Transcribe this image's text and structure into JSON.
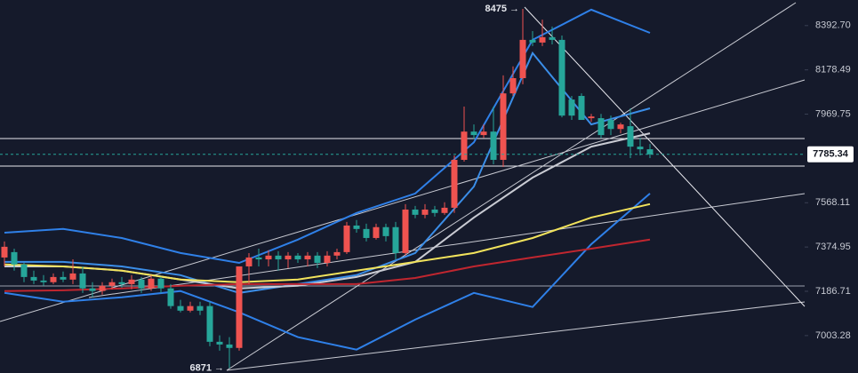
{
  "chart_data": {
    "type": "candlestick",
    "log_scale": true,
    "ylim": [
      6852,
      8519
    ],
    "yticks": [
      {
        "value": 8392.7,
        "label": "8392.70"
      },
      8178.49,
      7969.75,
      7568.11,
      7374.95,
      7186.71,
      7003.28
    ],
    "up_color": "#ef5350",
    "down_color": "#26a69a",
    "candles": {
      "open": [
        7330,
        7353,
        7300,
        7247,
        7232,
        7225,
        7247,
        7236,
        7262,
        7199,
        7188,
        7210,
        7225,
        7217,
        7236,
        7199,
        7240,
        7199,
        7125,
        7106,
        7125,
        7125,
        6978,
        6967,
        6953,
        7292,
        7330,
        7322,
        7338,
        7322,
        7338,
        7322,
        7338,
        7307,
        7338,
        7353,
        7468,
        7453,
        7414,
        7461,
        7461,
        7349,
        7538,
        7515,
        7538,
        7523,
        7546,
        7760,
        7889,
        7873,
        7889,
        7760,
        8067,
        8139,
        8323,
        8310,
        8336,
        8323,
        8038,
        8055,
        7951,
        7951,
        7943,
        7901,
        7914,
        7820,
        7808
      ],
      "high": [
        7399,
        7368,
        7307,
        7274,
        7255,
        7262,
        7270,
        7322,
        7292,
        7225,
        7225,
        7240,
        7247,
        7255,
        7247,
        7255,
        7247,
        7217,
        7151,
        7143,
        7143,
        7143,
        7004,
        6997,
        7217,
        7349,
        7368,
        7361,
        7357,
        7353,
        7349,
        7353,
        7353,
        7357,
        7368,
        7484,
        7492,
        7476,
        7476,
        7476,
        7484,
        7562,
        7554,
        7562,
        7554,
        7570,
        7780,
        8005,
        7922,
        7922,
        8005,
        8152,
        8195,
        8475,
        8366,
        8422,
        8388,
        8344,
        8055,
        8067,
        7971,
        7971,
        7963,
        7930,
        7997,
        7860,
        7832
      ],
      "low": [
        7292,
        7274,
        7225,
        7217,
        7210,
        7217,
        7225,
        7217,
        7180,
        7162,
        7173,
        7195,
        7202,
        7195,
        7180,
        7188,
        7180,
        7114,
        7099,
        7099,
        7088,
        6960,
        6942,
        6871,
        6942,
        7217,
        7292,
        7292,
        7274,
        7285,
        7307,
        7292,
        7285,
        7292,
        7322,
        7345,
        7437,
        7399,
        7407,
        7399,
        7322,
        7338,
        7500,
        7500,
        7507,
        7515,
        7523,
        7752,
        7856,
        7860,
        7740,
        7728,
        8055,
        8110,
        8293,
        8293,
        8301,
        7955,
        7943,
        7943,
        7934,
        7860,
        7873,
        7881,
        7768,
        7780,
        7768
      ],
      "close": [
        7376,
        7300,
        7247,
        7232,
        7225,
        7247,
        7236,
        7262,
        7199,
        7188,
        7210,
        7225,
        7217,
        7236,
        7199,
        7240,
        7199,
        7125,
        7106,
        7125,
        7106,
        6978,
        6967,
        6953,
        7292,
        7330,
        7322,
        7338,
        7322,
        7338,
        7322,
        7338,
        7307,
        7338,
        7353,
        7468,
        7453,
        7414,
        7461,
        7422,
        7349,
        7538,
        7515,
        7538,
        7523,
        7546,
        7760,
        7889,
        7873,
        7889,
        7760,
        8067,
        8139,
        8323,
        8310,
        8336,
        8323,
        7963,
        7963,
        7943,
        7959,
        7873,
        7901,
        7922,
        7820,
        7808,
        7785
      ]
    },
    "series": [
      {
        "color": "#2f80e8",
        "x": [
          0,
          6,
          12,
          18,
          24,
          30,
          36,
          42,
          48,
          54,
          60,
          66
        ],
        "values": [
          7437,
          7453,
          7414,
          7349,
          7307,
          7407,
          7523,
          7609,
          7840,
          8323,
          8471,
          8357
        ]
      },
      {
        "color": "#2f80e8",
        "x": [
          0,
          6,
          12,
          18,
          24,
          30,
          36,
          42,
          48,
          54,
          60,
          66
        ],
        "values": [
          7180,
          7143,
          7162,
          7188,
          7099,
          6997,
          6946,
          7069,
          7180,
          7121,
          7387,
          7609
        ]
      },
      {
        "color": "#3b8ee8",
        "x": [
          0,
          6,
          12,
          18,
          24,
          30,
          36,
          42,
          48,
          54,
          60,
          66
        ],
        "values": [
          7311,
          7311,
          7292,
          7255,
          7180,
          7217,
          7255,
          7349,
          7640,
          8259,
          7922,
          7997
        ]
      },
      {
        "color": "#c9cbd3",
        "x": [
          0,
          6,
          12,
          18,
          24,
          30,
          36,
          42,
          48,
          54,
          60,
          66
        ],
        "values": [
          7292,
          7292,
          7274,
          7236,
          7199,
          7210,
          7247,
          7311,
          7503,
          7680,
          7820,
          7881
        ]
      },
      {
        "color": "#f2e35c",
        "x": [
          0,
          6,
          12,
          18,
          24,
          30,
          36,
          42,
          48,
          54,
          60,
          66
        ],
        "values": [
          7300,
          7292,
          7274,
          7236,
          7225,
          7236,
          7274,
          7311,
          7349,
          7414,
          7503,
          7562
        ]
      },
      {
        "color": "#c0262f",
        "x": [
          0,
          6,
          12,
          18,
          24,
          30,
          36,
          42,
          48,
          54,
          60,
          66
        ],
        "values": [
          7188,
          7191,
          7199,
          7210,
          7217,
          7217,
          7217,
          7243,
          7292,
          7330,
          7368,
          7407
        ]
      }
    ],
    "last_price": 7785.34,
    "high_label": "8475 →",
    "low_label": "6871 →"
  }
}
